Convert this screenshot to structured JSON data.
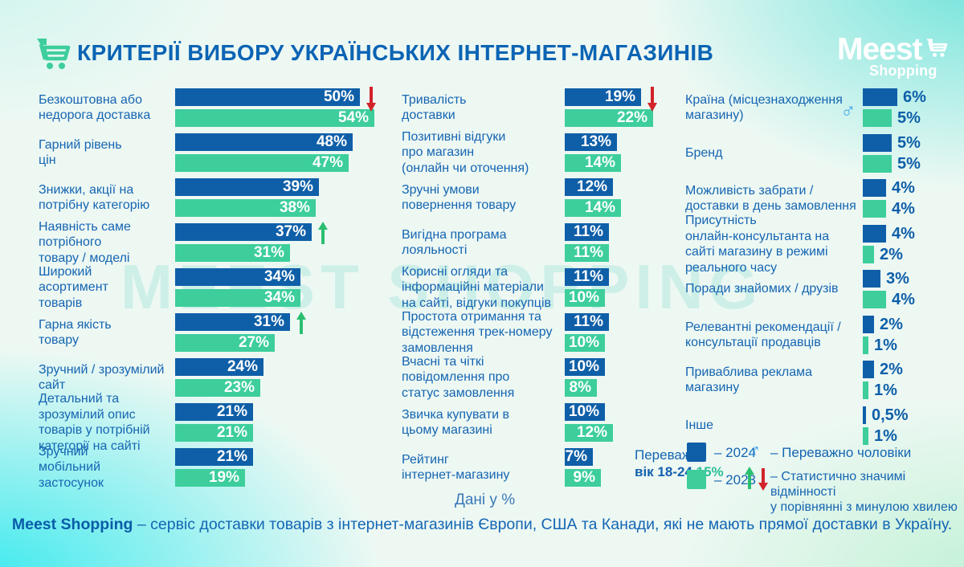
{
  "header": {
    "title": "КРИТЕРІЇ ВИБОРУ УКРАЇНСЬКИХ ІНТЕРНЕТ-МАГАЗИНІВ",
    "logo_name": "Meest",
    "logo_sub": "Shopping"
  },
  "watermark": "MEEST SHOPPING",
  "chart_data": {
    "type": "bar",
    "orientation": "horizontal",
    "unit": "%",
    "series": [
      "2024",
      "2023"
    ],
    "legend_position": "bottom-right",
    "columns": [
      {
        "items": [
          {
            "label": "Безкоштовна або\nнедорога доставка",
            "y2024": 50,
            "y2023": 54,
            "trend": "down"
          },
          {
            "label": "Гарний рівень\nцін",
            "y2024": 48,
            "y2023": 47
          },
          {
            "label": "Знижки, акції на\nпотрібну категорію",
            "y2024": 39,
            "y2023": 38
          },
          {
            "label": "Наявність саме\nпотрібного\nтовару / моделі",
            "y2024": 37,
            "y2023": 31,
            "trend": "up"
          },
          {
            "label": "Широкий\nасортимент\nтоварів",
            "y2024": 34,
            "y2023": 34
          },
          {
            "label": "Гарна якість\nтовару",
            "y2024": 31,
            "y2023": 27,
            "trend": "up"
          },
          {
            "label": "Зручний / зрозумілий\nсайт",
            "y2024": 24,
            "y2023": 23
          },
          {
            "label": "Детальний та\nзрозумілий опис\nтоварів у потрібній\nкатегорії на сайті",
            "y2024": 21,
            "y2023": 21
          },
          {
            "label": "Зручний\nмобільний\nзастосунок",
            "y2024": 21,
            "y2023": 19
          }
        ]
      },
      {
        "items": [
          {
            "label": "Тривалість\nдоставки",
            "y2024": 19,
            "y2023": 22,
            "trend": "down"
          },
          {
            "label": "Позитивні відгуки\nпро магазин\n(онлайн чи оточення)",
            "y2024": 13,
            "y2023": 14
          },
          {
            "label": "Зручні умови\nповернення товару",
            "y2024": 12,
            "y2023": 14
          },
          {
            "label": "Вигідна програма\nлояльності",
            "y2024": 11,
            "y2023": 11
          },
          {
            "label": "Корисні огляди та\nінформаційні матеріали\nна сайті, відгуки покупців",
            "y2024": 11,
            "y2023": 10
          },
          {
            "label": "Простота отримання та\nвідстеження трек-номеру\nзамовлення",
            "y2024": 11,
            "y2023": 10
          },
          {
            "label": "Вчасні та чіткі\nповідомлення про\nстатус замовлення",
            "y2024": 10,
            "y2023": 8
          },
          {
            "label": "Звичка купувати в\nцьому магазині",
            "y2024": 10,
            "y2023": 12
          },
          {
            "label": "Рейтинг\nінтернет-магазину",
            "y2024": 7,
            "y2023": 9,
            "note": {
              "regular": "Переважно",
              "bold": "вік 18-24",
              "value": "15%"
            }
          }
        ]
      },
      {
        "items": [
          {
            "label": "Країна (місцезнаходження\nмагазину)",
            "y2024": 6,
            "y2023": 5,
            "male": true
          },
          {
            "label": "Бренд",
            "y2024": 5,
            "y2023": 5
          },
          {
            "label": "Можливість забрати /\nдоставки в день замовлення",
            "y2024": 4,
            "y2023": 4
          },
          {
            "label": "Присутність\nонлайн-консультанта на\nсайті магазину в режимі\nреального часу",
            "y2024": 4,
            "y2023": 2
          },
          {
            "label": "Поради знайомих / друзів",
            "y2024": 3,
            "y2023": 4
          },
          {
            "label": "Релевантні рекомендації /\nконсультації продавців",
            "y2024": 2,
            "y2023": 1
          },
          {
            "label": "Приваблива реклама\nмагазину",
            "y2024": 2,
            "y2023": 1
          },
          {
            "label": "Інше",
            "y2024": 0.5,
            "y2023": 1
          }
        ]
      }
    ]
  },
  "legend": {
    "label_2024": "– 2024",
    "label_2023": "– 2023",
    "label_male": "– Переважно чоловіки",
    "label_stat": "– Статистично значимі відмінності\nу порівнянні з минулою хвилею"
  },
  "footnote": "Дані у %",
  "bottom": {
    "brand": "Meest Shopping",
    "text": "– сервіс доставки товарів з інтернет-магазинів Європи, США та Канади, які не мають прямої доставки в Україну."
  },
  "colors": {
    "bar_2024": "#0F5FA8",
    "bar_2023": "#3DCE9C",
    "trend_up": "#2BBE70",
    "trend_down": "#D2232A",
    "male_symbol": "#41A7E8",
    "title_text": "#0B64B4",
    "label_text": "#1565B2",
    "note_value": "#2CBF96"
  }
}
